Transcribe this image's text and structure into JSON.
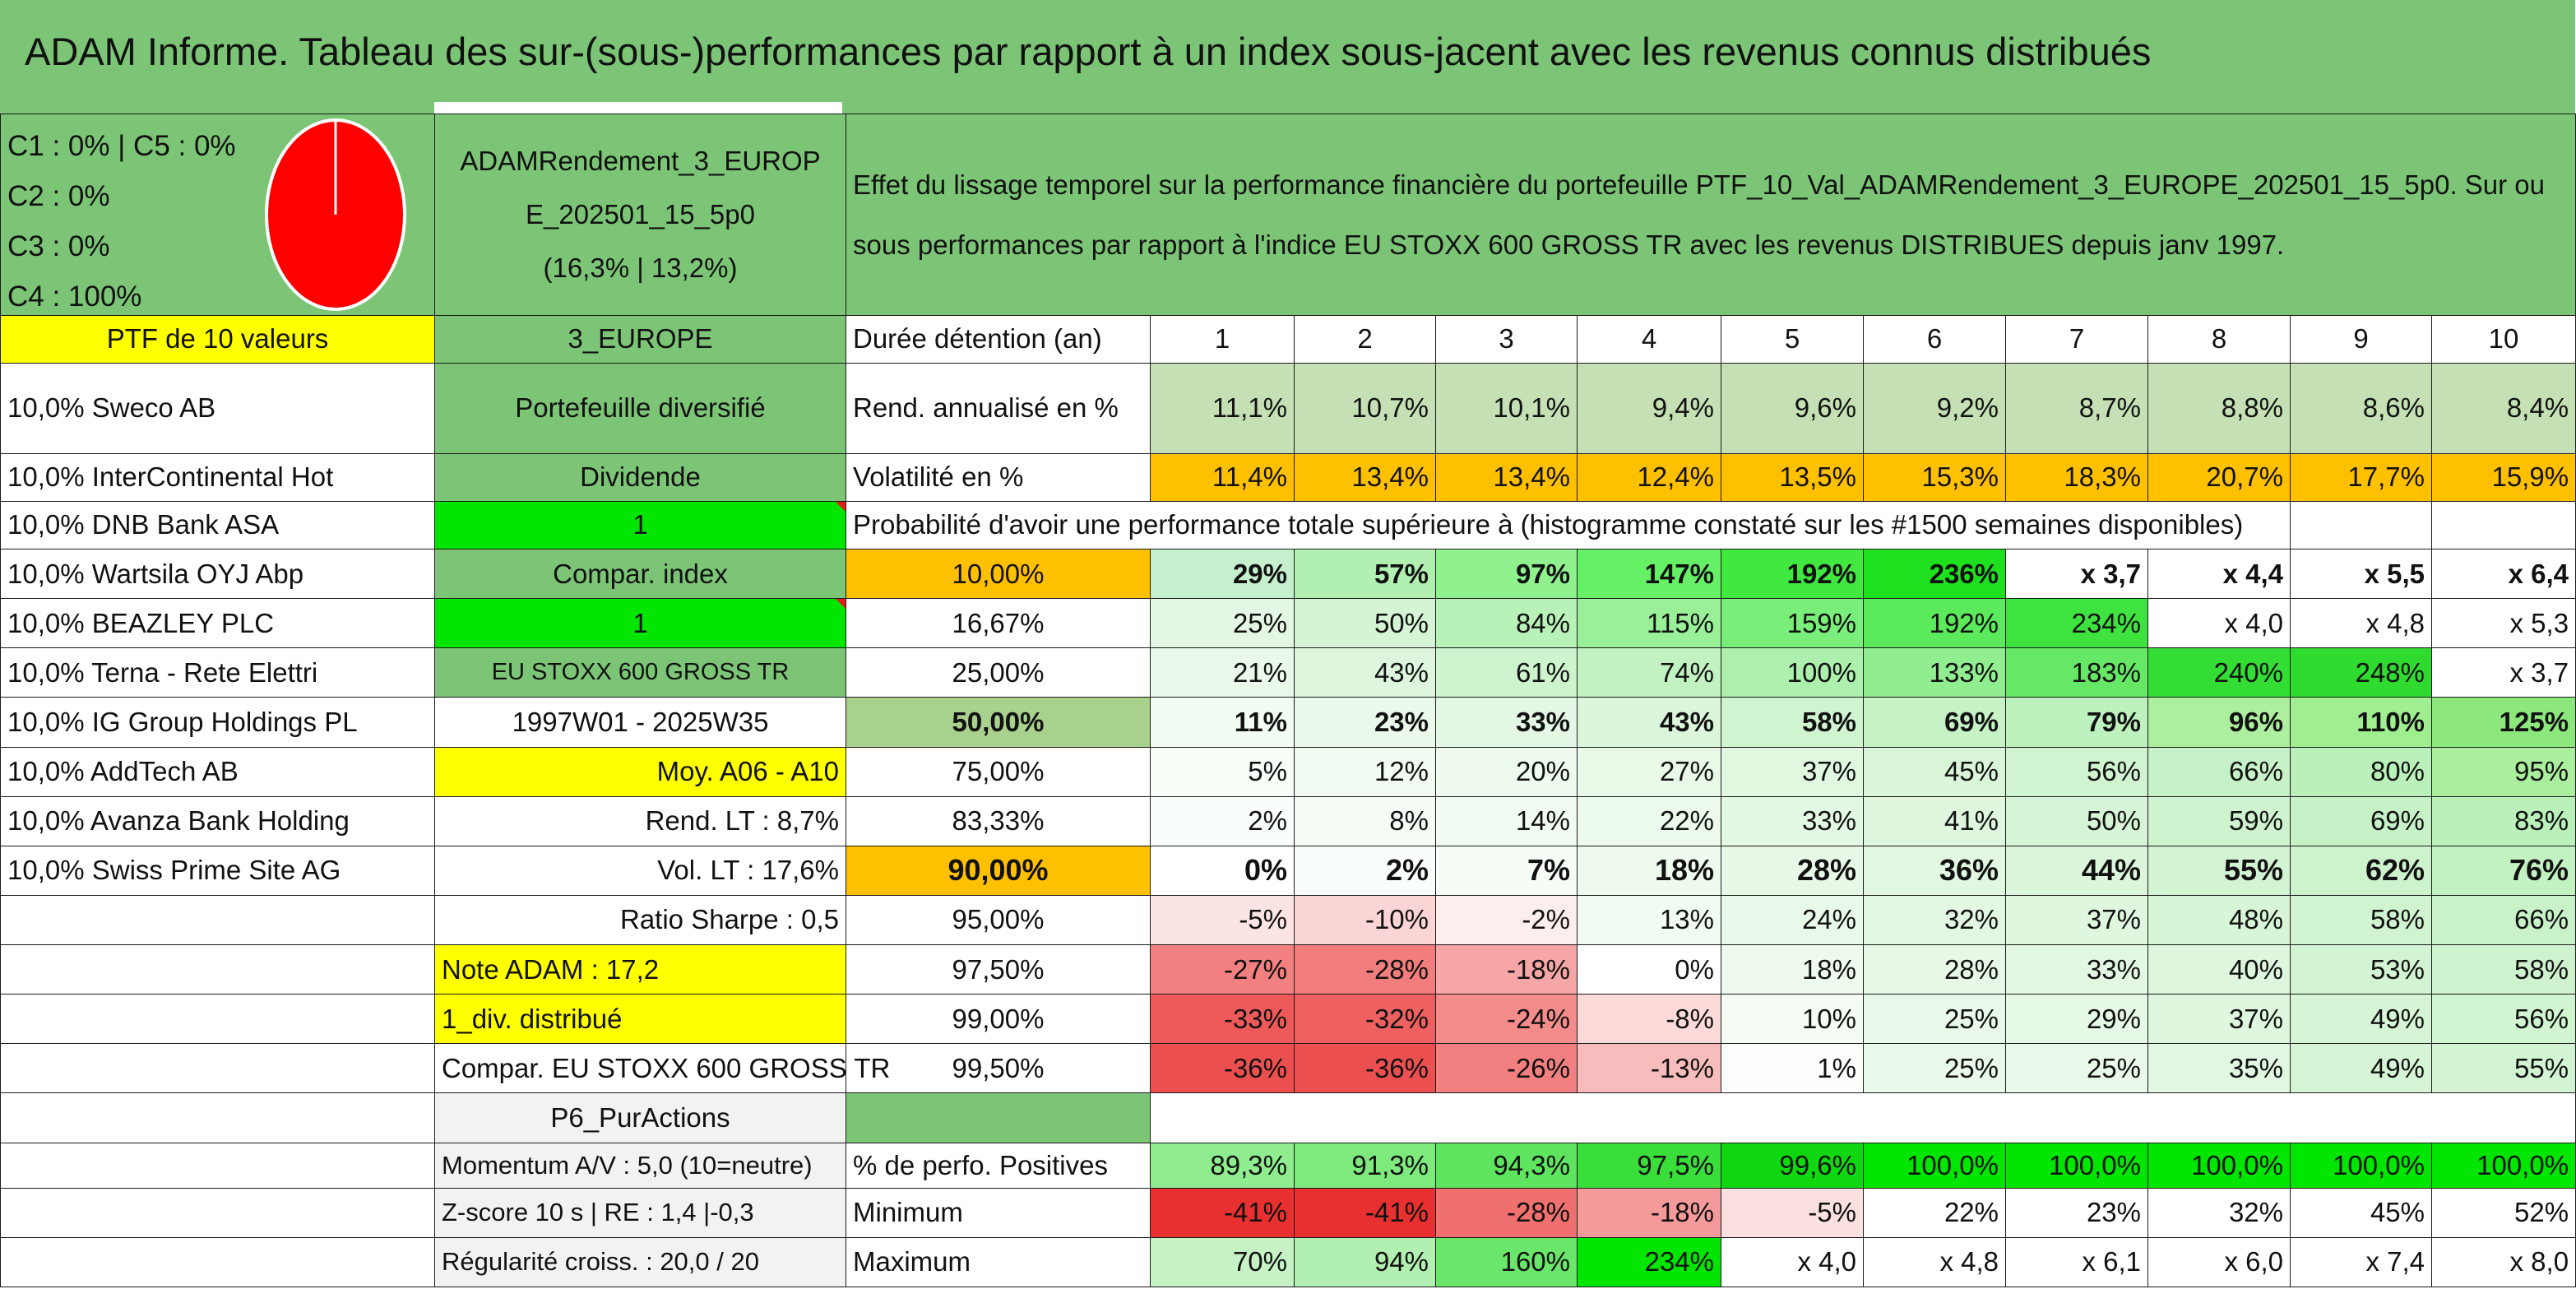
{
  "title": "ADAM Informe. Tableau des sur-(sous-)performances par rapport à un index sous-jacent avec les revenus connus distribués",
  "colors": {
    "header_green": "#7cc576",
    "yellow": "#ffff00",
    "orange": "#ffc000",
    "bright_green": "#00e600",
    "red_text": "#e31b1b",
    "pie_red": "#ff0000"
  },
  "header": {
    "allocation": [
      "C1 : 0% | C5 : 0%",
      "C2 : 0%",
      "C3 : 0%",
      "C4 : 100%"
    ],
    "pie": {
      "C1": 0,
      "C2": 0,
      "C3": 0,
      "C4": 100,
      "C5": 0
    },
    "fund_name_line1": "ADAMRendement_3_EUROP",
    "fund_name_line2": "E_202501_15_5p0",
    "fund_name_line3": "(16,3% | 13,2%)",
    "description": "Effet du lissage temporel sur la performance financière du portefeuille PTF_10_Val_ADAMRendement_3_EUROPE_202501_15_5p0. Sur ou sous performances par rapport à l'indice EU STOXX 600 GROSS TR avec les revenus DISTRIBUES depuis janv 1997."
  },
  "holdings_title": "PTF de 10 valeurs",
  "holdings": [
    "10,0% Sweco AB",
    "10,0% InterContinental Hot",
    "10,0% DNB Bank ASA",
    "10,0% Wartsila OYJ Abp",
    "10,0% BEAZLEY PLC",
    "10,0% Terna - Rete Elettri",
    "10,0% IG Group Holdings PL",
    "10,0% AddTech AB",
    "10,0% Avanza Bank Holding",
    "10,0% Swiss Prime Site AG"
  ],
  "info": [
    "3_EUROPE",
    "Portefeuille diversifié",
    "Dividende",
    "1",
    "Compar. index",
    "1",
    "EU STOXX 600 GROSS TR",
    "1997W01 - 2025W35",
    "Moy. A06 - A10",
    "Rend. LT : 8,7%",
    "Vol. LT : 17,6%",
    "Ratio Sharpe : 0,5",
    "Note ADAM : 17,2",
    "1_div. distribué",
    "Compar. EU STOXX 600 GROSS TR",
    "P6_PurActions",
    "Momentum A/V : 5,0 (10=neutre)",
    "Z-score 10 s | RE : 1,4 |-0,3",
    "Régularité croiss. : 20,0 / 20"
  ],
  "duration_label": "Durée détention (an)",
  "years": [
    "1",
    "2",
    "3",
    "4",
    "5",
    "6",
    "7",
    "8",
    "9",
    "10"
  ],
  "rend_label": "Rend. annualisé en %",
  "rend_values": [
    "11,1%",
    "10,7%",
    "10,1%",
    "9,4%",
    "9,6%",
    "9,2%",
    "8,7%",
    "8,8%",
    "8,6%",
    "8,4%"
  ],
  "vol_label": "Volatilité en %",
  "vol_values": [
    "11,4%",
    "13,4%",
    "13,4%",
    "12,4%",
    "13,5%",
    "15,3%",
    "18,3%",
    "20,7%",
    "17,7%",
    "15,9%"
  ],
  "prob_title": "Probabilité d'avoir une performance totale supérieure à (histogramme constaté sur les #1500 semaines disponibles)",
  "prob_rows": [
    {
      "label": "10,00%",
      "values": [
        "29%",
        "57%",
        "97%",
        "147%",
        "192%",
        "236%",
        "x 3,7",
        "x 4,4",
        "x 5,5",
        "x 6,4"
      ]
    },
    {
      "label": "16,67%",
      "values": [
        "25%",
        "50%",
        "84%",
        "115%",
        "159%",
        "192%",
        "234%",
        "x 4,0",
        "x 4,8",
        "x 5,3"
      ]
    },
    {
      "label": "25,00%",
      "values": [
        "21%",
        "43%",
        "61%",
        "74%",
        "100%",
        "133%",
        "183%",
        "240%",
        "248%",
        "x 3,7"
      ]
    },
    {
      "label": "50,00%",
      "values": [
        "11%",
        "23%",
        "33%",
        "43%",
        "58%",
        "69%",
        "79%",
        "96%",
        "110%",
        "125%"
      ]
    },
    {
      "label": "75,00%",
      "values": [
        "5%",
        "12%",
        "20%",
        "27%",
        "37%",
        "45%",
        "56%",
        "66%",
        "80%",
        "95%"
      ]
    },
    {
      "label": "83,33%",
      "values": [
        "2%",
        "8%",
        "14%",
        "22%",
        "33%",
        "41%",
        "50%",
        "59%",
        "69%",
        "83%"
      ]
    },
    {
      "label": "90,00%",
      "values": [
        "0%",
        "2%",
        "7%",
        "18%",
        "28%",
        "36%",
        "44%",
        "55%",
        "62%",
        "76%"
      ]
    },
    {
      "label": "95,00%",
      "values": [
        "-5%",
        "-10%",
        "-2%",
        "13%",
        "24%",
        "32%",
        "37%",
        "48%",
        "58%",
        "66%"
      ]
    },
    {
      "label": "97,50%",
      "values": [
        "-27%",
        "-28%",
        "-18%",
        "0%",
        "18%",
        "28%",
        "33%",
        "40%",
        "53%",
        "58%"
      ]
    },
    {
      "label": "99,00%",
      "values": [
        "-33%",
        "-32%",
        "-24%",
        "-8%",
        "10%",
        "25%",
        "29%",
        "37%",
        "49%",
        "56%"
      ]
    },
    {
      "label": "99,50%",
      "values": [
        "-36%",
        "-36%",
        "-26%",
        "-13%",
        "1%",
        "25%",
        "25%",
        "35%",
        "49%",
        "55%"
      ]
    }
  ],
  "pos_label": "% de perfo. Positives",
  "pos_values": [
    "89,3%",
    "91,3%",
    "94,3%",
    "97,5%",
    "99,6%",
    "100,0%",
    "100,0%",
    "100,0%",
    "100,0%",
    "100,0%"
  ],
  "min_label": "Minimum",
  "min_values": [
    "-41%",
    "-41%",
    "-28%",
    "-18%",
    "-5%",
    "22%",
    "23%",
    "32%",
    "45%",
    "52%"
  ],
  "max_label": "Maximum",
  "max_values": [
    "70%",
    "94%",
    "160%",
    "234%",
    "x 4,0",
    "x 4,8",
    "x 6,1",
    "x 6,0",
    "x 7,4",
    "x 8,0"
  ]
}
